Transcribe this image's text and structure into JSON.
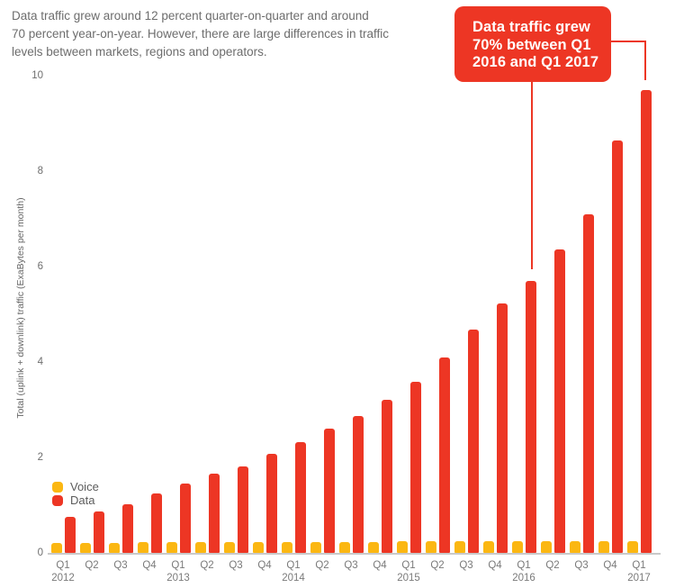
{
  "intro": {
    "lines": [
      "Data traffic grew around 12 percent quarter-on-quarter and around",
      "70 percent year-on-year. However, there are large differences in traffic",
      "levels between markets, regions and operators."
    ]
  },
  "callout": {
    "lines": [
      "Data traffic grew",
      "70% between Q1",
      "2016 and Q1 2017"
    ],
    "background_color": "#ED3624",
    "text_color": "#FFFFFF"
  },
  "colors": {
    "voice": "#FBB712",
    "data": "#ED3624",
    "axis_line": "#C9C9C9",
    "text_gray": "#6D6D6D"
  },
  "chart_data": {
    "type": "bar",
    "title": "",
    "ylabel": "Total (uplink + downlink) traffic (ExaBytes per month)",
    "xlabel": "",
    "ylim": [
      0,
      10
    ],
    "y_ticks": [
      0,
      2,
      4,
      6,
      8,
      10
    ],
    "grid": false,
    "legend_position": "left-middle",
    "categories": [
      {
        "label": "Q1",
        "year": "2012"
      },
      {
        "label": "Q2",
        "year": ""
      },
      {
        "label": "Q3",
        "year": ""
      },
      {
        "label": "Q4",
        "year": ""
      },
      {
        "label": "Q1",
        "year": "2013"
      },
      {
        "label": "Q2",
        "year": ""
      },
      {
        "label": "Q3",
        "year": ""
      },
      {
        "label": "Q4",
        "year": ""
      },
      {
        "label": "Q1",
        "year": "2014"
      },
      {
        "label": "Q2",
        "year": ""
      },
      {
        "label": "Q3",
        "year": ""
      },
      {
        "label": "Q4",
        "year": ""
      },
      {
        "label": "Q1",
        "year": "2015"
      },
      {
        "label": "Q2",
        "year": ""
      },
      {
        "label": "Q3",
        "year": ""
      },
      {
        "label": "Q4",
        "year": ""
      },
      {
        "label": "Q1",
        "year": "2016"
      },
      {
        "label": "Q2",
        "year": ""
      },
      {
        "label": "Q3",
        "year": ""
      },
      {
        "label": "Q4",
        "year": ""
      },
      {
        "label": "Q1",
        "year": "2017"
      }
    ],
    "series": [
      {
        "name": "Voice",
        "color": "#FBB712",
        "values": [
          0.21,
          0.21,
          0.21,
          0.22,
          0.22,
          0.22,
          0.22,
          0.22,
          0.23,
          0.23,
          0.23,
          0.23,
          0.24,
          0.24,
          0.24,
          0.24,
          0.24,
          0.24,
          0.25,
          0.25,
          0.25
        ]
      },
      {
        "name": "Data",
        "color": "#ED3624",
        "values": [
          0.75,
          0.87,
          1.02,
          1.24,
          1.45,
          1.66,
          1.81,
          2.08,
          2.32,
          2.6,
          2.87,
          3.2,
          3.58,
          4.1,
          4.68,
          5.22,
          5.7,
          6.35,
          7.1,
          8.65,
          9.7
        ]
      }
    ]
  }
}
